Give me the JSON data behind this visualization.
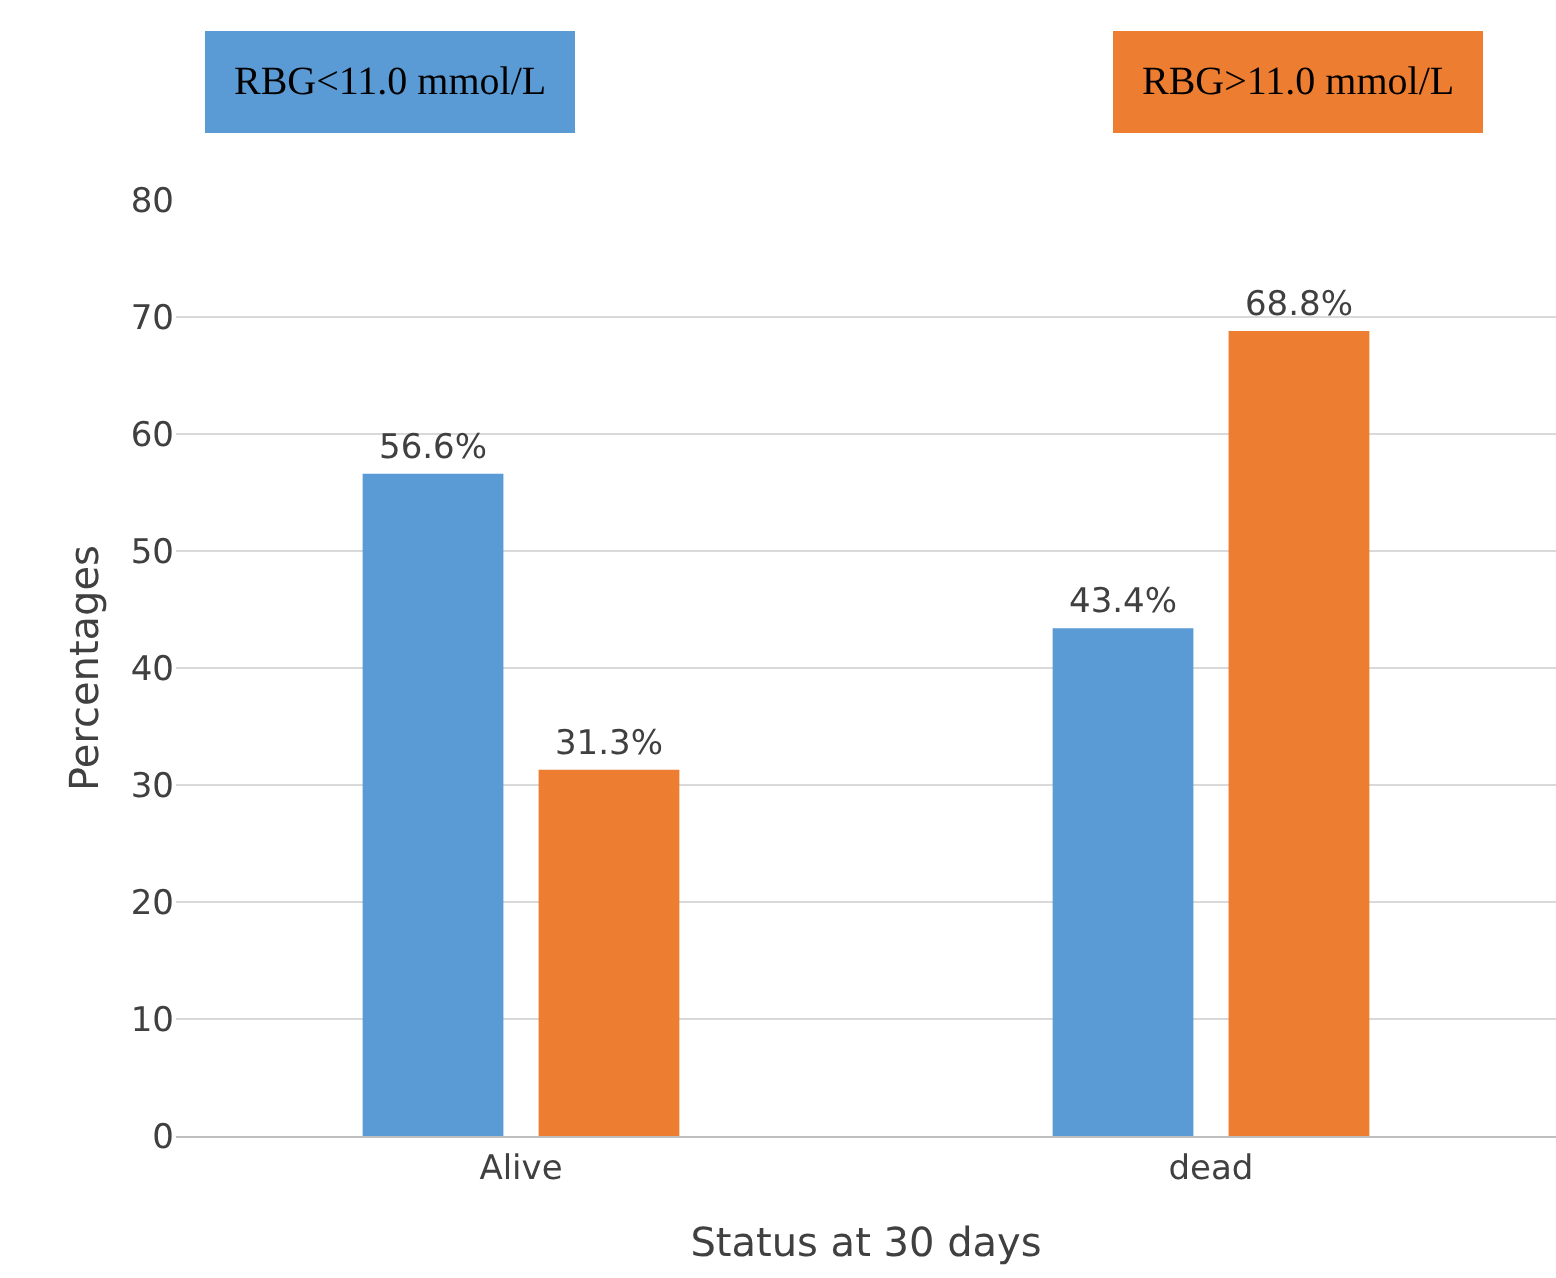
{
  "chart_data": {
    "type": "bar",
    "xlabel": "Status at 30 days",
    "ylabel": "Percentages",
    "categories": [
      "Alive",
      "dead"
    ],
    "series": [
      {
        "name": "RBG<11.0 mmol/L",
        "color": "#5b9bd5",
        "values": [
          56.6,
          43.4
        ],
        "value_labels": [
          "56.6%",
          "43.4%"
        ]
      },
      {
        "name": "RBG>11.0 mmol/L",
        "color": "#ed7d31",
        "values": [
          31.3,
          68.8
        ],
        "value_labels": [
          "31.3%",
          "68.8%"
        ]
      }
    ],
    "ylim": [
      0,
      80
    ],
    "yticks": [
      0,
      10,
      20,
      30,
      40,
      50,
      60,
      70,
      80
    ],
    "grid": "y",
    "legend": "top"
  }
}
